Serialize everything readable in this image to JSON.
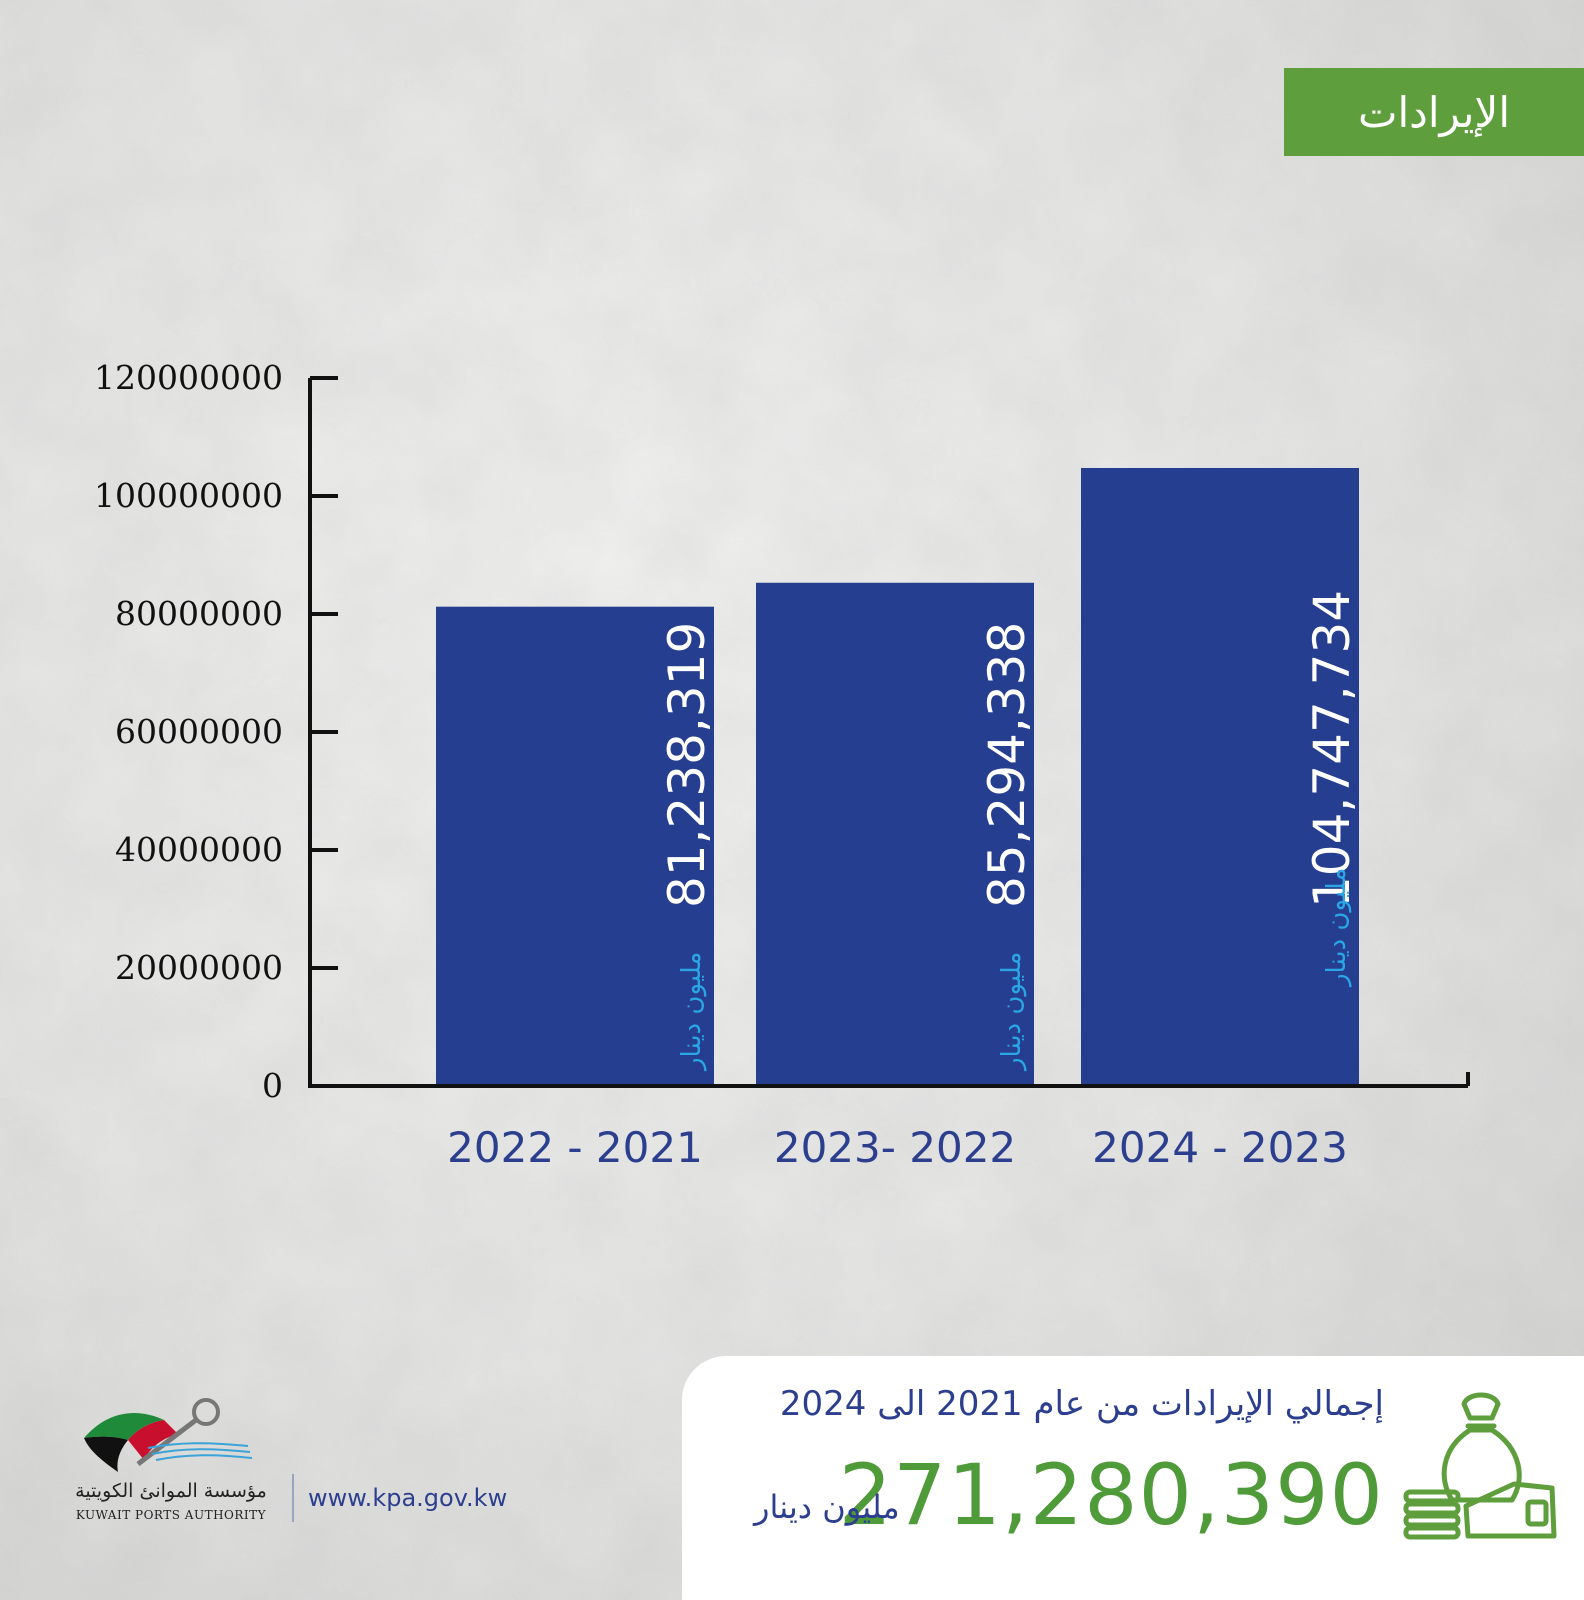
{
  "header": {
    "title": "الإيرادات"
  },
  "chart_data": {
    "type": "bar",
    "categories": [
      "2022 - 2021",
      "2023- 2022",
      "2024 - 2023"
    ],
    "values": [
      81238319,
      85294338,
      104747734
    ],
    "data_labels": [
      "81,238,319",
      "85,294,338",
      "104,747,734"
    ],
    "value_unit_label": "مليون دينار",
    "y_ticks": [
      "0",
      "20000000",
      "40000000",
      "60000000",
      "80000000",
      "100000000",
      "120000000"
    ],
    "ylim": [
      0,
      120000000
    ],
    "grid": false,
    "legend": "none",
    "bar_color": "#253e8f",
    "title": "",
    "xlabel": "",
    "ylabel": ""
  },
  "summary": {
    "title": "إجمالي الإيرادات من عام 2021 الى 2024",
    "total": "271,280,390",
    "unit": "مليون دينار",
    "icon": "money-bag-icon",
    "total_color": "#4f9a39"
  },
  "footer": {
    "org_name_ar": "مؤسسة الموانئ الكويتية",
    "org_name_en": "KUWAIT PORTS AUTHORITY",
    "website": "www.kpa.gov.kw"
  },
  "colors": {
    "banner": "#5f9e3c",
    "axis_text": "#2b3f8e",
    "bar_label_unit": "#2aa6e6"
  }
}
